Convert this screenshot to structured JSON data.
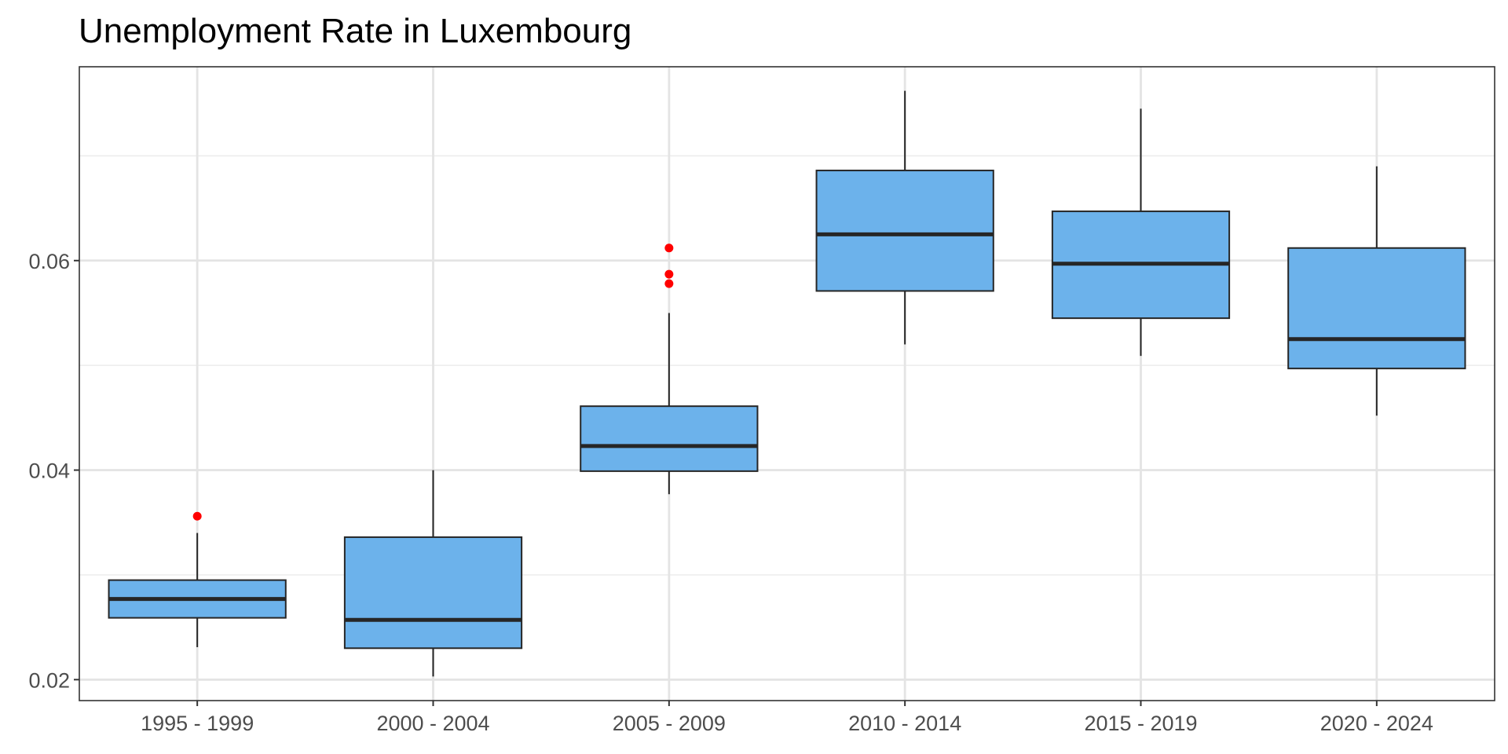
{
  "chart_data": {
    "type": "box",
    "title": "Unemployment Rate in Luxembourg",
    "xlabel": "",
    "ylabel": "",
    "ylim": [
      0.018,
      0.0785
    ],
    "y_ticks": [
      {
        "value": 0.02,
        "label": "0.02"
      },
      {
        "value": 0.04,
        "label": "0.04"
      },
      {
        "value": 0.06,
        "label": "0.06"
      }
    ],
    "y_minor_ticks": [
      0.03,
      0.05,
      0.07
    ],
    "grid": true,
    "box_fill": "#6cb2eb",
    "box_stroke": "#262626",
    "outlier_color": "#ff0000",
    "categories": [
      "1995 - 1999",
      "2000 - 2004",
      "2005 - 2009",
      "2010 - 2014",
      "2015 - 2019",
      "2020 - 2024"
    ],
    "boxes": [
      {
        "category": "1995 - 1999",
        "whisker_low": 0.0231,
        "q1": 0.0259,
        "median": 0.0277,
        "q3": 0.0295,
        "whisker_high": 0.034,
        "outliers": [
          0.0356
        ]
      },
      {
        "category": "2000 - 2004",
        "whisker_low": 0.0203,
        "q1": 0.023,
        "median": 0.0257,
        "q3": 0.0336,
        "whisker_high": 0.04,
        "outliers": []
      },
      {
        "category": "2005 - 2009",
        "whisker_low": 0.0377,
        "q1": 0.0399,
        "median": 0.0423,
        "q3": 0.0461,
        "whisker_high": 0.055,
        "outliers": [
          0.0578,
          0.0587,
          0.0612
        ]
      },
      {
        "category": "2010 - 2014",
        "whisker_low": 0.052,
        "q1": 0.0571,
        "median": 0.0625,
        "q3": 0.0686,
        "whisker_high": 0.0762,
        "outliers": []
      },
      {
        "category": "2015 - 2019",
        "whisker_low": 0.0509,
        "q1": 0.0545,
        "median": 0.0597,
        "q3": 0.0647,
        "whisker_high": 0.0745,
        "outliers": []
      },
      {
        "category": "2020 - 2024",
        "whisker_low": 0.0452,
        "q1": 0.0497,
        "median": 0.0525,
        "q3": 0.0612,
        "whisker_high": 0.069,
        "outliers": []
      }
    ]
  }
}
